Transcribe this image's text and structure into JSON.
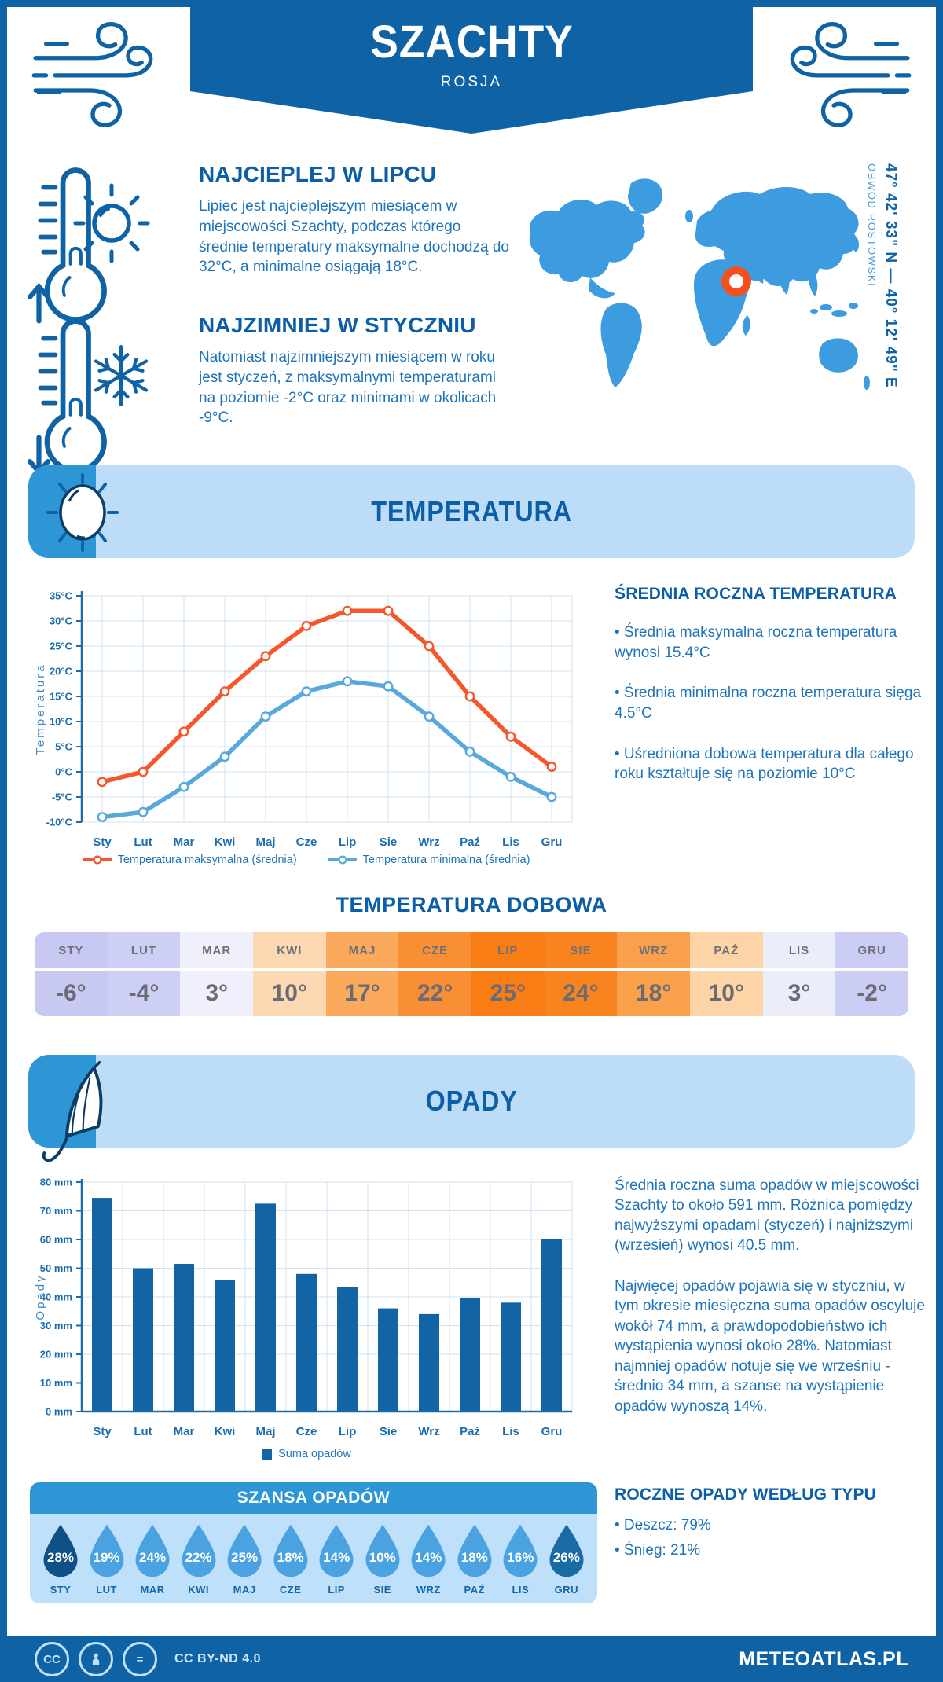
{
  "header": {
    "title": "SZACHTY",
    "subtitle": "ROSJA"
  },
  "ui": {
    "bullet": "•"
  },
  "intro": {
    "warm": {
      "heading": "NAJCIEPLEJ W LIPCU",
      "text": "Lipiec jest najcieplejszym miesiącem w miejscowości Szachty, podczas którego średnie temperatury maksymalne dochodzą do 32°C, a minimalne osiągają 18°C."
    },
    "cold": {
      "heading": "NAJZIMNIEJ W STYCZNIU",
      "text": "Natomiast najzimniejszym miesiącem w roku jest styczeń, z maksymalnymi temperaturami na poziomie -2°C oraz minimami w okolicach -9°C."
    }
  },
  "map": {
    "coordinates": "47° 42' 33\" N — 40° 12' 49\" E",
    "region": "OBWÓD ROSTOWSKI",
    "land_color": "#3d9be0",
    "marker_color": "#f4501e"
  },
  "temperature": {
    "banner": "TEMPERATURA",
    "annual": {
      "heading": "ŚREDNIA ROCZNA TEMPERATURA",
      "bullets": [
        "Średnia maksymalna roczna temperatura wynosi 15.4°C",
        "Średnia minimalna roczna temperatura sięga 4.5°C",
        "Uśredniona dobowa temperatura dla całego roku kształtuje się na poziomie 10°C"
      ]
    },
    "daily": {
      "heading": "TEMPERATURA DOBOWA",
      "cells": [
        {
          "month": "STY",
          "value": "-6°",
          "bg": "#c7c9f3"
        },
        {
          "month": "LUT",
          "value": "-4°",
          "bg": "#cdcff4"
        },
        {
          "month": "MAR",
          "value": "3°",
          "bg": "#eff0fb"
        },
        {
          "month": "KWI",
          "value": "10°",
          "bg": "#fcd9b3"
        },
        {
          "month": "MAJ",
          "value": "17°",
          "bg": "#fba95c"
        },
        {
          "month": "CZE",
          "value": "22°",
          "bg": "#f98f35"
        },
        {
          "month": "LIP",
          "value": "25°",
          "bg": "#f87d15"
        },
        {
          "month": "SIE",
          "value": "24°",
          "bg": "#f8831f"
        },
        {
          "month": "WRZ",
          "value": "18°",
          "bg": "#faa04a"
        },
        {
          "month": "PAŹ",
          "value": "10°",
          "bg": "#fcd4a6"
        },
        {
          "month": "LIS",
          "value": "3°",
          "bg": "#ecedfa"
        },
        {
          "month": "GRU",
          "value": "-2°",
          "bg": "#cbcdf4"
        }
      ]
    }
  },
  "precipitation": {
    "banner": "OPADY",
    "paragraphs": [
      "Średnia roczna suma opadów w miejscowości Szachty to około 591 mm. Różnica pomiędzy najwyższymi opadami (styczeń) i najniższymi (wrzesień) wynosi 40.5 mm.",
      "Najwięcej opadów pojawia się w styczniu, w tym okresie miesięczna suma opadów oscyluje wokół 74 mm, a prawdopodobieństwo ich wystąpienia wynosi około 28%. Natomiast najmniej opadów notuje się we wrześniu - średnio 34 mm, a szanse na wystąpienie opadów wynoszą 14%."
    ],
    "chance": {
      "heading": "SZANSA OPADÓW",
      "default_color": "#4aa3e0",
      "items": [
        {
          "month": "STY",
          "value": "28%",
          "color": "#0f5086"
        },
        {
          "month": "LUT",
          "value": "19%",
          "color": "#4aa3e0"
        },
        {
          "month": "MAR",
          "value": "24%",
          "color": "#4aa3e0"
        },
        {
          "month": "KWI",
          "value": "22%",
          "color": "#4aa3e0"
        },
        {
          "month": "MAJ",
          "value": "25%",
          "color": "#4aa3e0"
        },
        {
          "month": "CZE",
          "value": "18%",
          "color": "#4aa3e0"
        },
        {
          "month": "LIP",
          "value": "14%",
          "color": "#4aa3e0"
        },
        {
          "month": "SIE",
          "value": "10%",
          "color": "#4aa3e0"
        },
        {
          "month": "WRZ",
          "value": "14%",
          "color": "#4aa3e0"
        },
        {
          "month": "PAŹ",
          "value": "18%",
          "color": "#4aa3e0"
        },
        {
          "month": "LIS",
          "value": "16%",
          "color": "#4aa3e0"
        },
        {
          "month": "GRU",
          "value": "26%",
          "color": "#1a6aa6"
        }
      ]
    },
    "types": {
      "heading": "ROCZNE OPADY WEDŁUG TYPU",
      "bullets": [
        "Deszcz: 79%",
        "Śnieg: 21%"
      ]
    }
  },
  "chart_data": [
    {
      "type": "line",
      "title": "TEMPERATURA",
      "categories": [
        "Sty",
        "Lut",
        "Mar",
        "Kwi",
        "Maj",
        "Cze",
        "Lip",
        "Sie",
        "Wrz",
        "Paź",
        "Lis",
        "Gru"
      ],
      "series": [
        {
          "name": "Temperatura maksymalna (średnia)",
          "color": "#f4572b",
          "values": [
            -2,
            0,
            8,
            16,
            23,
            29,
            32,
            32,
            25,
            15,
            7,
            1
          ]
        },
        {
          "name": "Temperatura minimalna (średnia)",
          "color": "#58a8de",
          "values": [
            -9,
            -8,
            -3,
            3,
            11,
            16,
            18,
            17,
            11,
            4,
            -1,
            -5
          ]
        }
      ],
      "ylabel": "Temperatura",
      "ylim": [
        -10,
        35
      ],
      "ytick_step": 5,
      "ytick_suffix": "°C",
      "grid": true,
      "legend_position": "bottom"
    },
    {
      "type": "bar",
      "title": "OPADY",
      "categories": [
        "Sty",
        "Lut",
        "Mar",
        "Kwi",
        "Maj",
        "Cze",
        "Lip",
        "Sie",
        "Wrz",
        "Paź",
        "Lis",
        "Gru"
      ],
      "series_name": "Suma opadów",
      "values": [
        74.5,
        50,
        51.5,
        46,
        72.5,
        48,
        43.5,
        36,
        34,
        39.5,
        38,
        60
      ],
      "color": "#1264a5",
      "ylabel": "Opady",
      "ylim": [
        0,
        80
      ],
      "ytick_step": 10,
      "ytick_suffix": " mm",
      "grid": true,
      "legend_position": "bottom"
    }
  ],
  "footer": {
    "license": "CC BY-ND 4.0",
    "site": "METEOATLAS.PL"
  }
}
